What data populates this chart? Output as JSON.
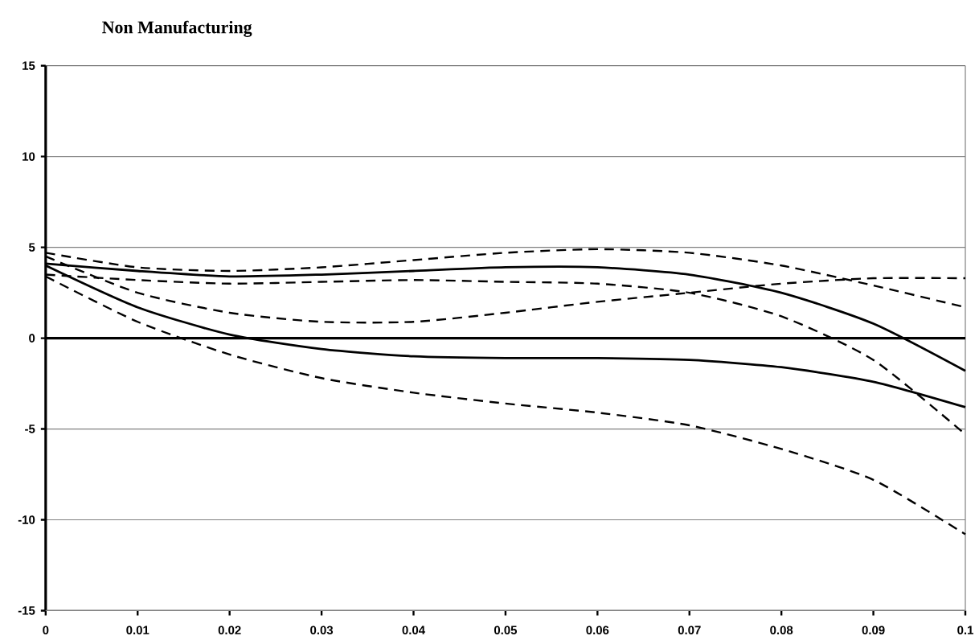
{
  "chart_data": {
    "type": "line",
    "title": "Non Manufacturing",
    "x": [
      0,
      0.01,
      0.02,
      0.03,
      0.04,
      0.05,
      0.06,
      0.07,
      0.08,
      0.09,
      0.1
    ],
    "series": [
      {
        "color": "#000000",
        "line_style": "solid",
        "values": [
          4.1,
          3.7,
          3.4,
          3.5,
          3.7,
          3.9,
          3.9,
          3.5,
          2.5,
          0.8,
          -1.8
        ]
      },
      {
        "color": "#000000",
        "line_style": "dashed",
        "values": [
          4.7,
          3.9,
          3.7,
          3.9,
          4.3,
          4.7,
          4.9,
          4.7,
          4.0,
          2.9,
          1.7
        ]
      },
      {
        "color": "#000000",
        "line_style": "dashed",
        "values": [
          3.5,
          3.2,
          3.0,
          3.1,
          3.2,
          3.1,
          3.0,
          2.5,
          1.2,
          -1.2,
          -5.3
        ]
      },
      {
        "color": "#000000",
        "line_style": "solid",
        "values": [
          4.0,
          1.7,
          0.2,
          -0.6,
          -1.0,
          -1.1,
          -1.1,
          -1.2,
          -1.6,
          -2.4,
          -3.8
        ]
      },
      {
        "color": "#000000",
        "line_style": "dashed",
        "values": [
          4.5,
          2.5,
          1.4,
          0.9,
          0.9,
          1.4,
          2.0,
          2.5,
          3.0,
          3.3,
          3.3
        ]
      },
      {
        "color": "#000000",
        "line_style": "dashed",
        "values": [
          3.4,
          0.9,
          -0.9,
          -2.2,
          -3.0,
          -3.6,
          -4.1,
          -4.8,
          -6.1,
          -7.8,
          -10.8
        ]
      }
    ],
    "xlim": [
      0,
      0.1
    ],
    "ylim": [
      -15,
      15
    ],
    "xticks": [
      0,
      0.01,
      0.02,
      0.03,
      0.04,
      0.05,
      0.06,
      0.07,
      0.08,
      0.09,
      0.1
    ],
    "yticks": [
      -15,
      -10,
      -5,
      0,
      5,
      10,
      15
    ],
    "ref_lines": [
      {
        "axis": "y",
        "value": 0
      }
    ],
    "grid": "y",
    "marker": "none"
  }
}
